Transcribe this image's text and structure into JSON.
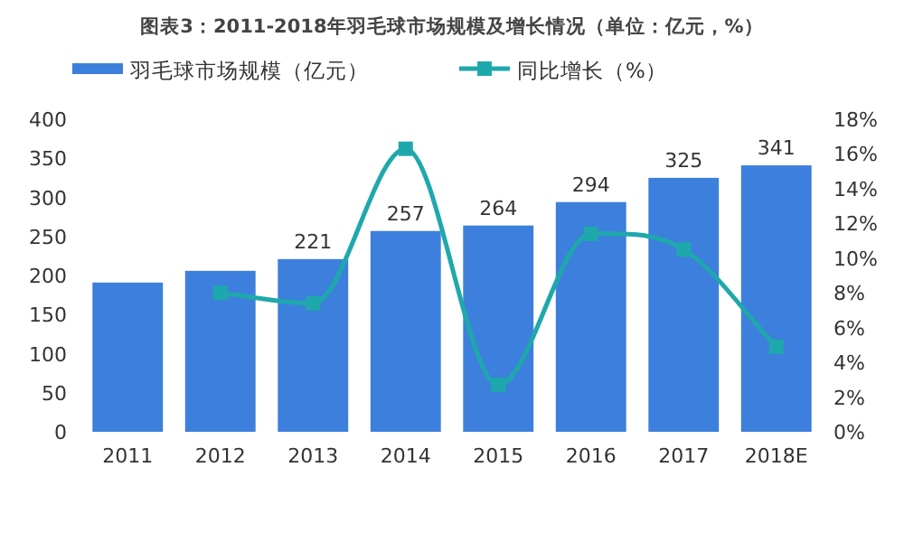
{
  "chart_data": {
    "type": "bar",
    "title": "图表3：2011-2018年羽毛球市场规模及增长情况（单位：亿元，%）",
    "categories": [
      "2011",
      "2012",
      "2013",
      "2014",
      "2015",
      "2016",
      "2017",
      "2018E"
    ],
    "series": [
      {
        "name": "羽毛球市场规模（亿元）",
        "color": "#3d7fdc",
        "values": [
          191,
          206,
          221,
          257,
          264,
          294,
          325,
          341
        ],
        "value_labels": [
          null,
          null,
          "221",
          "257",
          "264",
          "294",
          "325",
          "341"
        ]
      },
      {
        "name": "同比增长（%）",
        "type": "line",
        "axis": "y2",
        "color": "#1fa8ac",
        "marker": "square",
        "values": [
          null,
          8.0,
          7.4,
          16.3,
          2.7,
          11.4,
          10.5,
          4.9
        ]
      }
    ],
    "ylim": [
      0,
      400
    ],
    "yticks": [
      0,
      50,
      100,
      150,
      200,
      250,
      300,
      350,
      400
    ],
    "y2lim": [
      0,
      18
    ],
    "y2ticks": [
      {
        "value": 0,
        "label": "0%"
      },
      {
        "value": 2,
        "label": "2%"
      },
      {
        "value": 4,
        "label": "4%"
      },
      {
        "value": 6,
        "label": "6%"
      },
      {
        "value": 8,
        "label": "8%"
      },
      {
        "value": 10,
        "label": "10%"
      },
      {
        "value": 12,
        "label": "12%"
      },
      {
        "value": 14,
        "label": "14%"
      },
      {
        "value": 16,
        "label": "16%"
      },
      {
        "value": 18,
        "label": "18%"
      }
    ],
    "grid": false,
    "legend": "top"
  }
}
